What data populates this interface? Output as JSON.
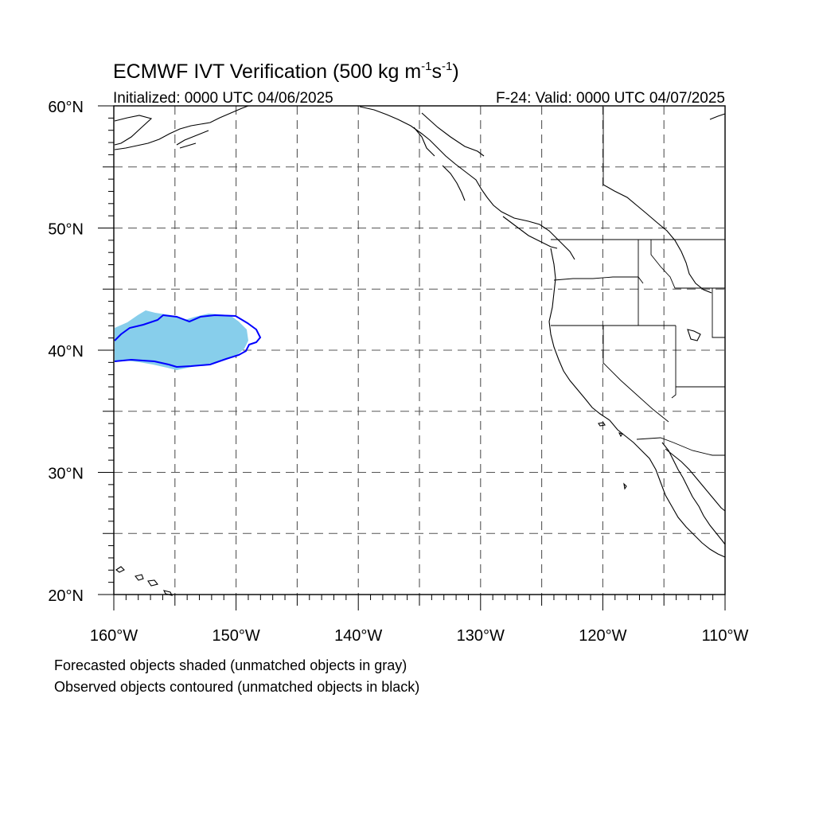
{
  "header": {
    "title_main": "ECMWF IVT Verification (500 kg m",
    "title_exp1": "-1",
    "title_mid": "s",
    "title_exp2": "-1",
    "title_end": ")",
    "initialized": "Initialized: 0000 UTC 04/06/2025",
    "valid": "F-24: Valid: 0000 UTC 04/07/2025"
  },
  "map": {
    "lon_range": [
      -160,
      -110
    ],
    "lat_range": [
      20,
      60
    ],
    "lat_labels": [
      {
        "lat": 60,
        "text": "60°N"
      },
      {
        "lat": 50,
        "text": "50°N"
      },
      {
        "lat": 40,
        "text": "40°N"
      },
      {
        "lat": 30,
        "text": "30°N"
      },
      {
        "lat": 20,
        "text": "20°N"
      }
    ],
    "lon_labels": [
      {
        "lon": -160,
        "text": "160°W"
      },
      {
        "lon": -150,
        "text": "150°W"
      },
      {
        "lon": -140,
        "text": "140°W"
      },
      {
        "lon": -130,
        "text": "130°W"
      },
      {
        "lon": -120,
        "text": "120°W"
      },
      {
        "lon": -110,
        "text": "110°W"
      }
    ],
    "gridline_spacing_deg": 5,
    "gridlines": "dashed",
    "forecast_object": {
      "color": "#87ceeb",
      "lon_range": [
        -160,
        -148
      ],
      "lat_range": [
        38.5,
        43
      ]
    },
    "observed_object": {
      "color": "#0000ff",
      "lon_range": [
        -160,
        -148
      ],
      "lat_range": [
        38.8,
        43
      ]
    }
  },
  "footer": {
    "note1": "Forecasted objects shaded (unmatched objects in gray)",
    "note2": "Observed objects contoured (unmatched objects in black)"
  }
}
